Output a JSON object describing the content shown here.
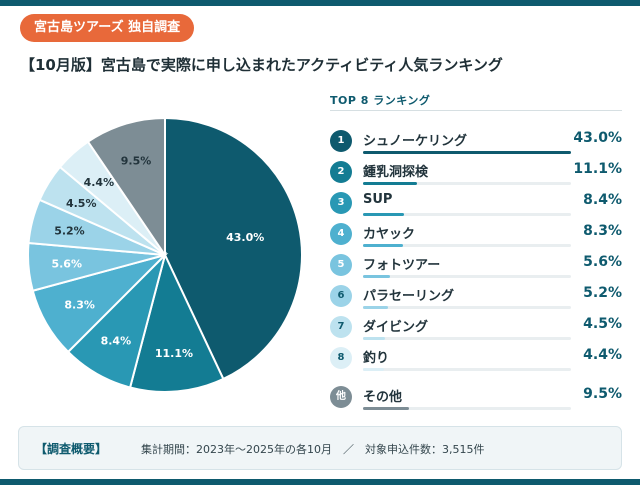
{
  "header": {
    "badge": "宮古島ツアーズ 独自調査",
    "title": "【10月版】宮古島で実際に申し込まれたアクティビティ人気ランキング"
  },
  "ranking": {
    "heading": "TOP 8 ランキング"
  },
  "summary": {
    "label": "【調査概要】",
    "text": "集計期間：2023年〜2025年の各10月　／　対象申込件数：3,515件"
  },
  "chart_data": {
    "type": "pie",
    "categories": [
      "シュノーケリング",
      "鍾乳洞探検",
      "SUP",
      "カヤック",
      "フォトツアー",
      "パラセーリング",
      "ダイビング",
      "釣り",
      "その他"
    ],
    "values": [
      43.0,
      11.1,
      8.4,
      8.3,
      5.6,
      5.2,
      4.5,
      4.4,
      9.5
    ],
    "labels": [
      "43.0%",
      "11.1%",
      "8.4%",
      "8.3%",
      "5.6%",
      "5.2%",
      "4.5%",
      "4.4%",
      "9.5%"
    ],
    "ranks": [
      "1",
      "2",
      "3",
      "4",
      "5",
      "6",
      "7",
      "8",
      "他"
    ],
    "colors": [
      "#0e5a6e",
      "#137c93",
      "#2998b4",
      "#4eb0cf",
      "#79c4df",
      "#9bd3e8",
      "#bde2ef",
      "#dceff6",
      "#7d8d95"
    ],
    "label_colors": [
      "#ffffff",
      "#ffffff",
      "#ffffff",
      "#ffffff",
      "#ffffff",
      "#22343c",
      "#22343c",
      "#22343c",
      "#22343c"
    ],
    "title": "",
    "legend": "right"
  }
}
